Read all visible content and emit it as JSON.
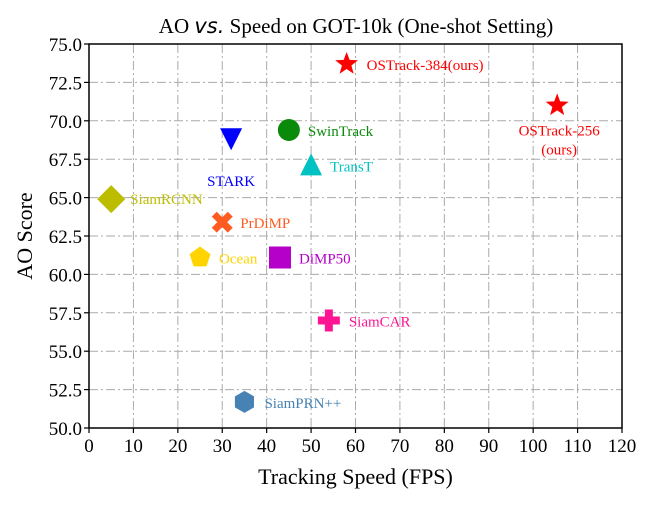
{
  "chart_data": {
    "type": "scatter",
    "title_prefix": "AO ",
    "title_italic": "vs.",
    "title_suffix": " Speed on GOT-10k (One-shot Setting)",
    "xlabel": "Tracking Speed (FPS)",
    "ylabel": "AO Score",
    "xlim": [
      0,
      120
    ],
    "ylim": [
      50,
      75
    ],
    "xticks": [
      0,
      10,
      20,
      30,
      40,
      50,
      60,
      70,
      80,
      90,
      100,
      110,
      120
    ],
    "yticks": [
      "50.0",
      "52.5",
      "55.0",
      "57.5",
      "60.0",
      "62.5",
      "65.0",
      "67.5",
      "70.0",
      "72.5",
      "75.0"
    ],
    "grid": true,
    "points": [
      {
        "label": "OSTrack-384(ours)",
        "x": 58,
        "y": 73.7,
        "marker": "star",
        "color": "#ff0000"
      },
      {
        "label_lines": [
          "OSTrack-256",
          "(ours)"
        ],
        "x": 105.4,
        "y": 71.0,
        "marker": "star",
        "color": "#ff0000"
      },
      {
        "label": "SwinTrack",
        "x": 45,
        "y": 69.4,
        "marker": "circle",
        "color": "#0a8a0a"
      },
      {
        "label": "STARK",
        "x": 32,
        "y": 68.8,
        "marker": "triangle-down",
        "color": "#0000ff"
      },
      {
        "label": "TransT",
        "x": 50,
        "y": 67.1,
        "marker": "triangle-up",
        "color": "#00c2c2"
      },
      {
        "label": "SiamRCNN",
        "x": 5,
        "y": 64.9,
        "marker": "diamond",
        "color": "#bdbd00"
      },
      {
        "label": "PrDiMP",
        "x": 30,
        "y": 63.4,
        "marker": "x",
        "color": "#ff5a1f"
      },
      {
        "label": "Ocean",
        "x": 25,
        "y": 61.1,
        "marker": "pentagon",
        "color": "#ffd400"
      },
      {
        "label": "DiMP50",
        "x": 43,
        "y": 61.1,
        "marker": "square",
        "color": "#b400c8"
      },
      {
        "label": "SiamCAR",
        "x": 54,
        "y": 57.0,
        "marker": "plus",
        "color": "#ff1493"
      },
      {
        "label": "SiamPRN++",
        "x": 35,
        "y": 51.7,
        "marker": "hexagon",
        "color": "#4682b4"
      }
    ]
  }
}
